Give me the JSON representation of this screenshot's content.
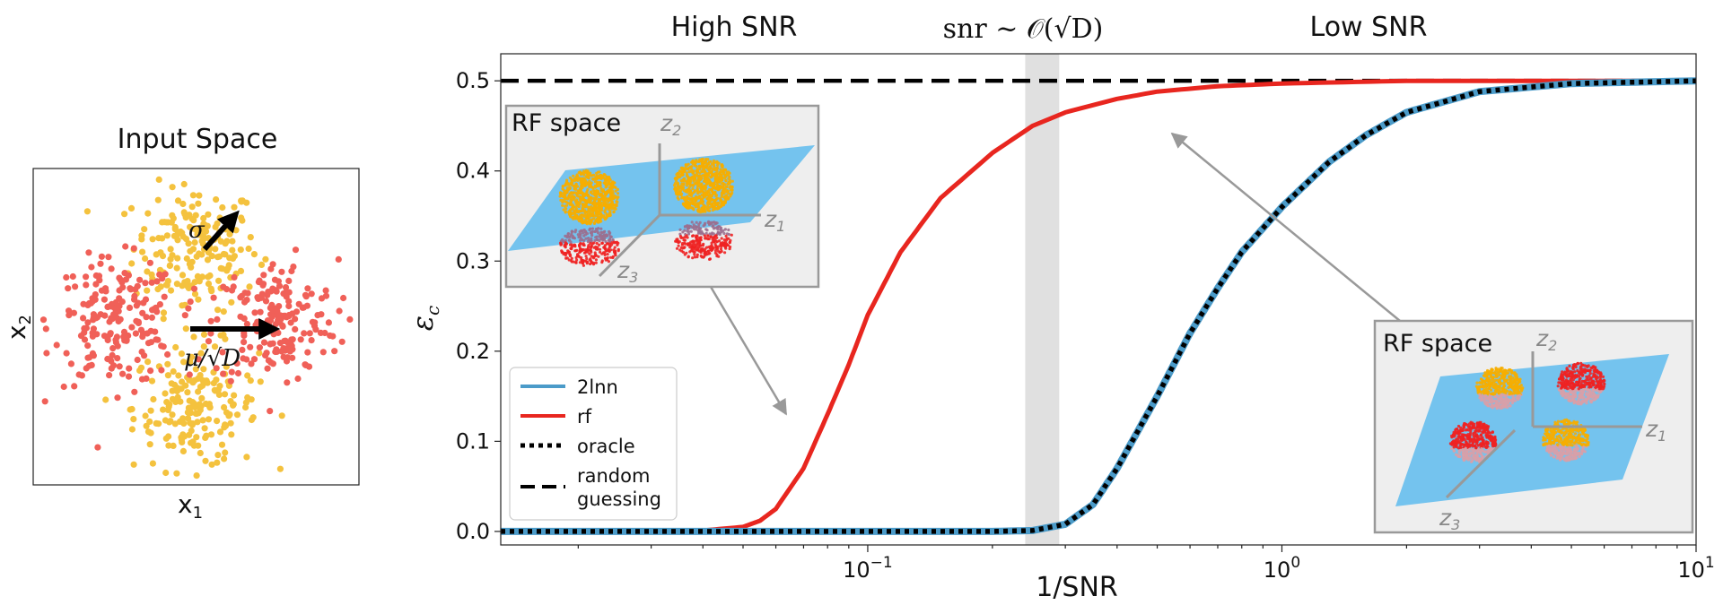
{
  "figure": {
    "left_panel": {
      "title": "Input Space",
      "xlabel": "x",
      "xlabel_sub": "1",
      "ylabel": "x",
      "ylabel_sub": "2",
      "sigma_label": "σ",
      "mu_label": "μ/√D",
      "colors": {
        "class_a": "#F4C23E",
        "class_b": "#F06058"
      },
      "clusters": [
        {
          "class": "class_a",
          "center": [
            0.0,
            0.85
          ]
        },
        {
          "class": "class_a",
          "center": [
            0.0,
            -0.85
          ]
        },
        {
          "class": "class_b",
          "center": [
            -0.85,
            0.05
          ]
        },
        {
          "class": "class_b",
          "center": [
            0.85,
            0.05
          ]
        }
      ]
    },
    "region_labels": {
      "high_snr": "High SNR",
      "crossover": "snr ~ 𝒪(√D)",
      "low_snr": "Low SNR"
    },
    "insets": {
      "left": {
        "title": "RF space",
        "z1": "z",
        "z1_sub": "1",
        "z2": "z",
        "z2_sub": "2",
        "z3": "z",
        "z3_sub": "3"
      },
      "right": {
        "title": "RF space",
        "z1": "z",
        "z1_sub": "1",
        "z2": "z",
        "z2_sub": "2",
        "z3": "z",
        "z3_sub": "3"
      }
    }
  },
  "chart_data": {
    "type": "line",
    "title": "",
    "xlabel": "1/SNR",
    "ylabel": "ε",
    "ylabel_sub": "c",
    "xscale": "log",
    "xlim": [
      0.013,
      10
    ],
    "ylim": [
      -0.015,
      0.53
    ],
    "x_tick_labels": [
      {
        "value": 0.1,
        "base": "10",
        "exp": "−1"
      },
      {
        "value": 1,
        "base": "10",
        "exp": "0"
      },
      {
        "value": 10,
        "base": "10",
        "exp": "1"
      }
    ],
    "yticks": [
      0.0,
      0.1,
      0.2,
      0.3,
      0.4,
      0.5
    ],
    "ytick_labels": [
      "0.0",
      "0.1",
      "0.2",
      "0.3",
      "0.4",
      "0.5"
    ],
    "shaded_band": [
      0.24,
      0.29
    ],
    "legend_position": "lower-left",
    "series": [
      {
        "name": "2lnn",
        "legend": "2lnn",
        "color": "#4B9BC9",
        "style": "solid",
        "x": [
          0.013,
          0.1,
          0.2,
          0.25,
          0.3,
          0.35,
          0.4,
          0.5,
          0.6,
          0.7,
          0.8,
          1.0,
          1.3,
          1.6,
          2.0,
          3.0,
          5.0,
          10.0
        ],
        "y": [
          0.0,
          0.0,
          0.0,
          0.001,
          0.008,
          0.03,
          0.07,
          0.15,
          0.22,
          0.27,
          0.31,
          0.36,
          0.41,
          0.44,
          0.465,
          0.488,
          0.497,
          0.5
        ]
      },
      {
        "name": "rf",
        "legend": "rf",
        "color": "#E8261F",
        "style": "solid",
        "x": [
          0.013,
          0.04,
          0.05,
          0.055,
          0.06,
          0.07,
          0.08,
          0.09,
          0.1,
          0.12,
          0.15,
          0.2,
          0.25,
          0.3,
          0.4,
          0.5,
          0.7,
          1.0,
          2.0,
          10.0
        ],
        "y": [
          0.0,
          0.001,
          0.005,
          0.012,
          0.025,
          0.07,
          0.13,
          0.185,
          0.24,
          0.31,
          0.37,
          0.42,
          0.45,
          0.465,
          0.48,
          0.488,
          0.494,
          0.497,
          0.5,
          0.5
        ]
      },
      {
        "name": "oracle",
        "legend": "oracle",
        "color": "#000000",
        "style": "dotted",
        "x": [
          0.013,
          0.1,
          0.2,
          0.25,
          0.3,
          0.35,
          0.4,
          0.5,
          0.6,
          0.7,
          0.8,
          1.0,
          1.3,
          1.6,
          2.0,
          3.0,
          5.0,
          10.0
        ],
        "y": [
          0.0,
          0.0,
          0.0,
          0.001,
          0.008,
          0.03,
          0.07,
          0.15,
          0.22,
          0.27,
          0.31,
          0.36,
          0.41,
          0.44,
          0.465,
          0.488,
          0.497,
          0.5
        ]
      },
      {
        "name": "random guessing",
        "legend": [
          "random",
          "guessing"
        ],
        "color": "#000000",
        "style": "dashed",
        "x": [
          0.013,
          10.0
        ],
        "y": [
          0.5,
          0.5
        ]
      }
    ]
  }
}
